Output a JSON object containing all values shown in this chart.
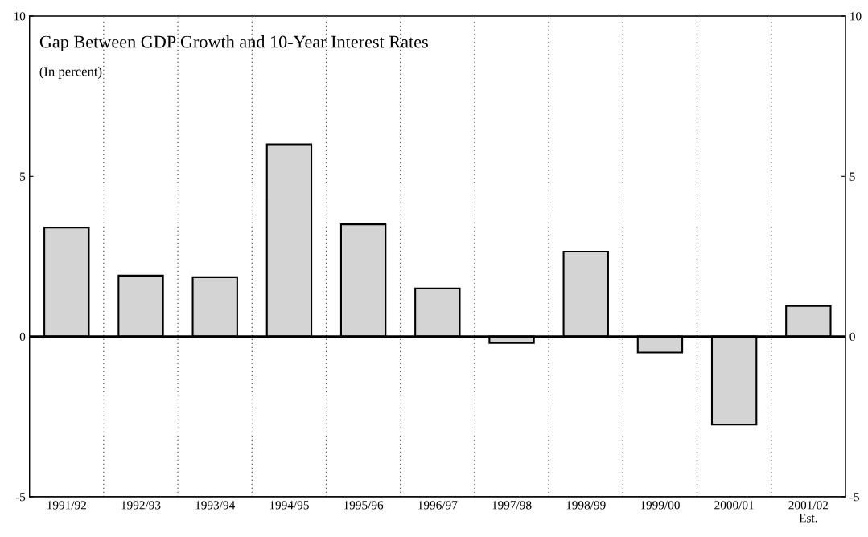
{
  "chart_data": {
    "type": "bar",
    "title": "Gap Between GDP Growth and 10-Year Interest Rates",
    "subtitle": "(In percent)",
    "categories": [
      "1991/92",
      "1992/93",
      "1993/94",
      "1994/95",
      "1995/96",
      "1996/97",
      "1997/98",
      "1998/99",
      "1999/00",
      "2000/01",
      "2001/02\nEst."
    ],
    "values": [
      3.4,
      1.9,
      1.85,
      6.0,
      3.5,
      1.5,
      -0.2,
      2.65,
      -0.5,
      -2.75,
      0.95
    ],
    "color": "#d4d4d4",
    "ylim": [
      -5,
      10
    ],
    "yticks": [
      -5,
      0,
      5,
      10
    ],
    "y2lim": [
      -5,
      10
    ],
    "y2ticks": [
      -5,
      0,
      5,
      10
    ],
    "grid": "x",
    "ref_lines": [
      {
        "axis": "y",
        "value": 0,
        "color": "#000000"
      }
    ]
  }
}
